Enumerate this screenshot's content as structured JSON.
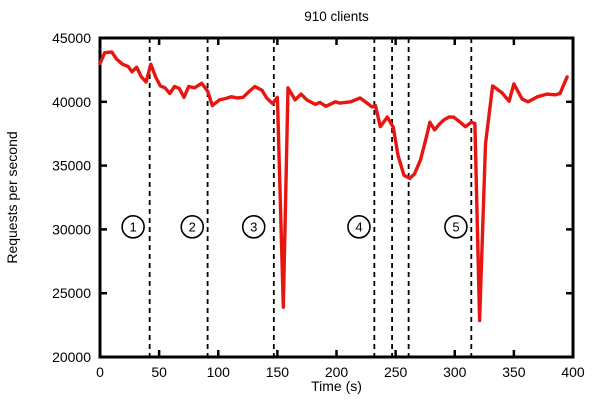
{
  "chart_data": {
    "type": "line",
    "title": "910 clients",
    "xlabel": "Time (s)",
    "ylabel": "Requests per second",
    "xlim": [
      0,
      400
    ],
    "ylim": [
      20000,
      45000
    ],
    "x_ticks": [
      0,
      50,
      100,
      150,
      200,
      250,
      300,
      350,
      400
    ],
    "y_ticks": [
      20000,
      25000,
      30000,
      35000,
      40000,
      45000
    ],
    "grid": false,
    "legend": "none",
    "line_color": "#e81611",
    "axis_color": "#000000",
    "series": [
      {
        "name": "requests-per-second",
        "x": [
          0,
          4,
          10,
          14,
          19,
          24,
          27,
          31,
          35,
          39,
          43,
          47,
          51,
          55,
          59,
          63,
          67,
          71,
          75,
          80,
          86,
          91,
          95,
          101,
          106,
          111,
          116,
          121,
          126,
          131,
          137,
          141,
          146,
          150,
          155,
          159,
          165,
          170,
          175,
          182,
          186,
          191,
          199,
          203,
          212,
          220,
          225,
          230,
          233,
          237,
          243,
          248,
          252,
          257,
          262,
          266,
          271,
          276,
          279,
          283,
          287,
          291,
          295,
          299,
          304,
          309,
          314,
          317,
          321,
          326,
          332,
          340,
          346,
          350,
          357,
          362,
          370,
          378,
          385,
          389,
          395
        ],
        "y": [
          43000,
          43850,
          43900,
          43350,
          42950,
          42750,
          42350,
          42700,
          41950,
          41550,
          42950,
          41950,
          41250,
          41100,
          40650,
          41200,
          41050,
          40350,
          41200,
          41100,
          41450,
          40850,
          39700,
          40150,
          40250,
          40400,
          40300,
          40350,
          40800,
          41200,
          40900,
          40300,
          39850,
          40350,
          23900,
          41100,
          40150,
          40600,
          40150,
          39800,
          39950,
          39650,
          40000,
          39900,
          40000,
          40300,
          39950,
          39600,
          39700,
          38050,
          38800,
          38000,
          35800,
          34250,
          34000,
          34350,
          35450,
          37250,
          38400,
          37800,
          38250,
          38600,
          38800,
          38800,
          38450,
          38050,
          38400,
          38300,
          22850,
          36700,
          41250,
          40700,
          40050,
          41400,
          40200,
          40000,
          40400,
          40600,
          40550,
          40650,
          41950
        ]
      }
    ],
    "annotations": {
      "dashed_vlines_x": [
        42,
        91,
        147,
        232,
        247,
        261,
        314
      ],
      "phase_markers": [
        {
          "label": "1",
          "x": 28,
          "y": 30200
        },
        {
          "label": "2",
          "x": 78,
          "y": 30200
        },
        {
          "label": "3",
          "x": 130,
          "y": 30200
        },
        {
          "label": "4",
          "x": 219,
          "y": 30200
        },
        {
          "label": "5",
          "x": 301,
          "y": 30200
        }
      ]
    }
  }
}
